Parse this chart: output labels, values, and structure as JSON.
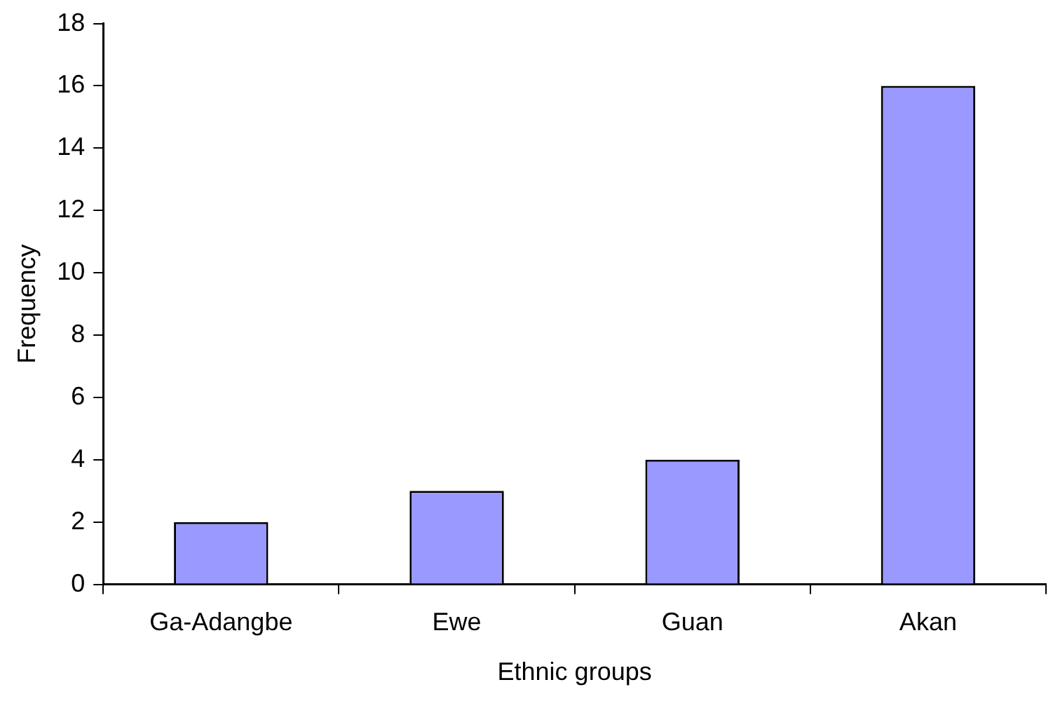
{
  "chart_data": {
    "type": "bar",
    "xlabel": "Ethnic groups",
    "ylabel": "Frequency",
    "categories": [
      "Ga-Adangbe",
      "Ewe",
      "Guan",
      "Akan"
    ],
    "values": [
      2,
      3,
      4,
      16
    ],
    "color": "#9999ff",
    "ylim": [
      0,
      18
    ],
    "yticks": [
      0,
      2,
      4,
      6,
      8,
      10,
      12,
      14,
      16,
      18
    ],
    "grid": false,
    "legend": false
  }
}
